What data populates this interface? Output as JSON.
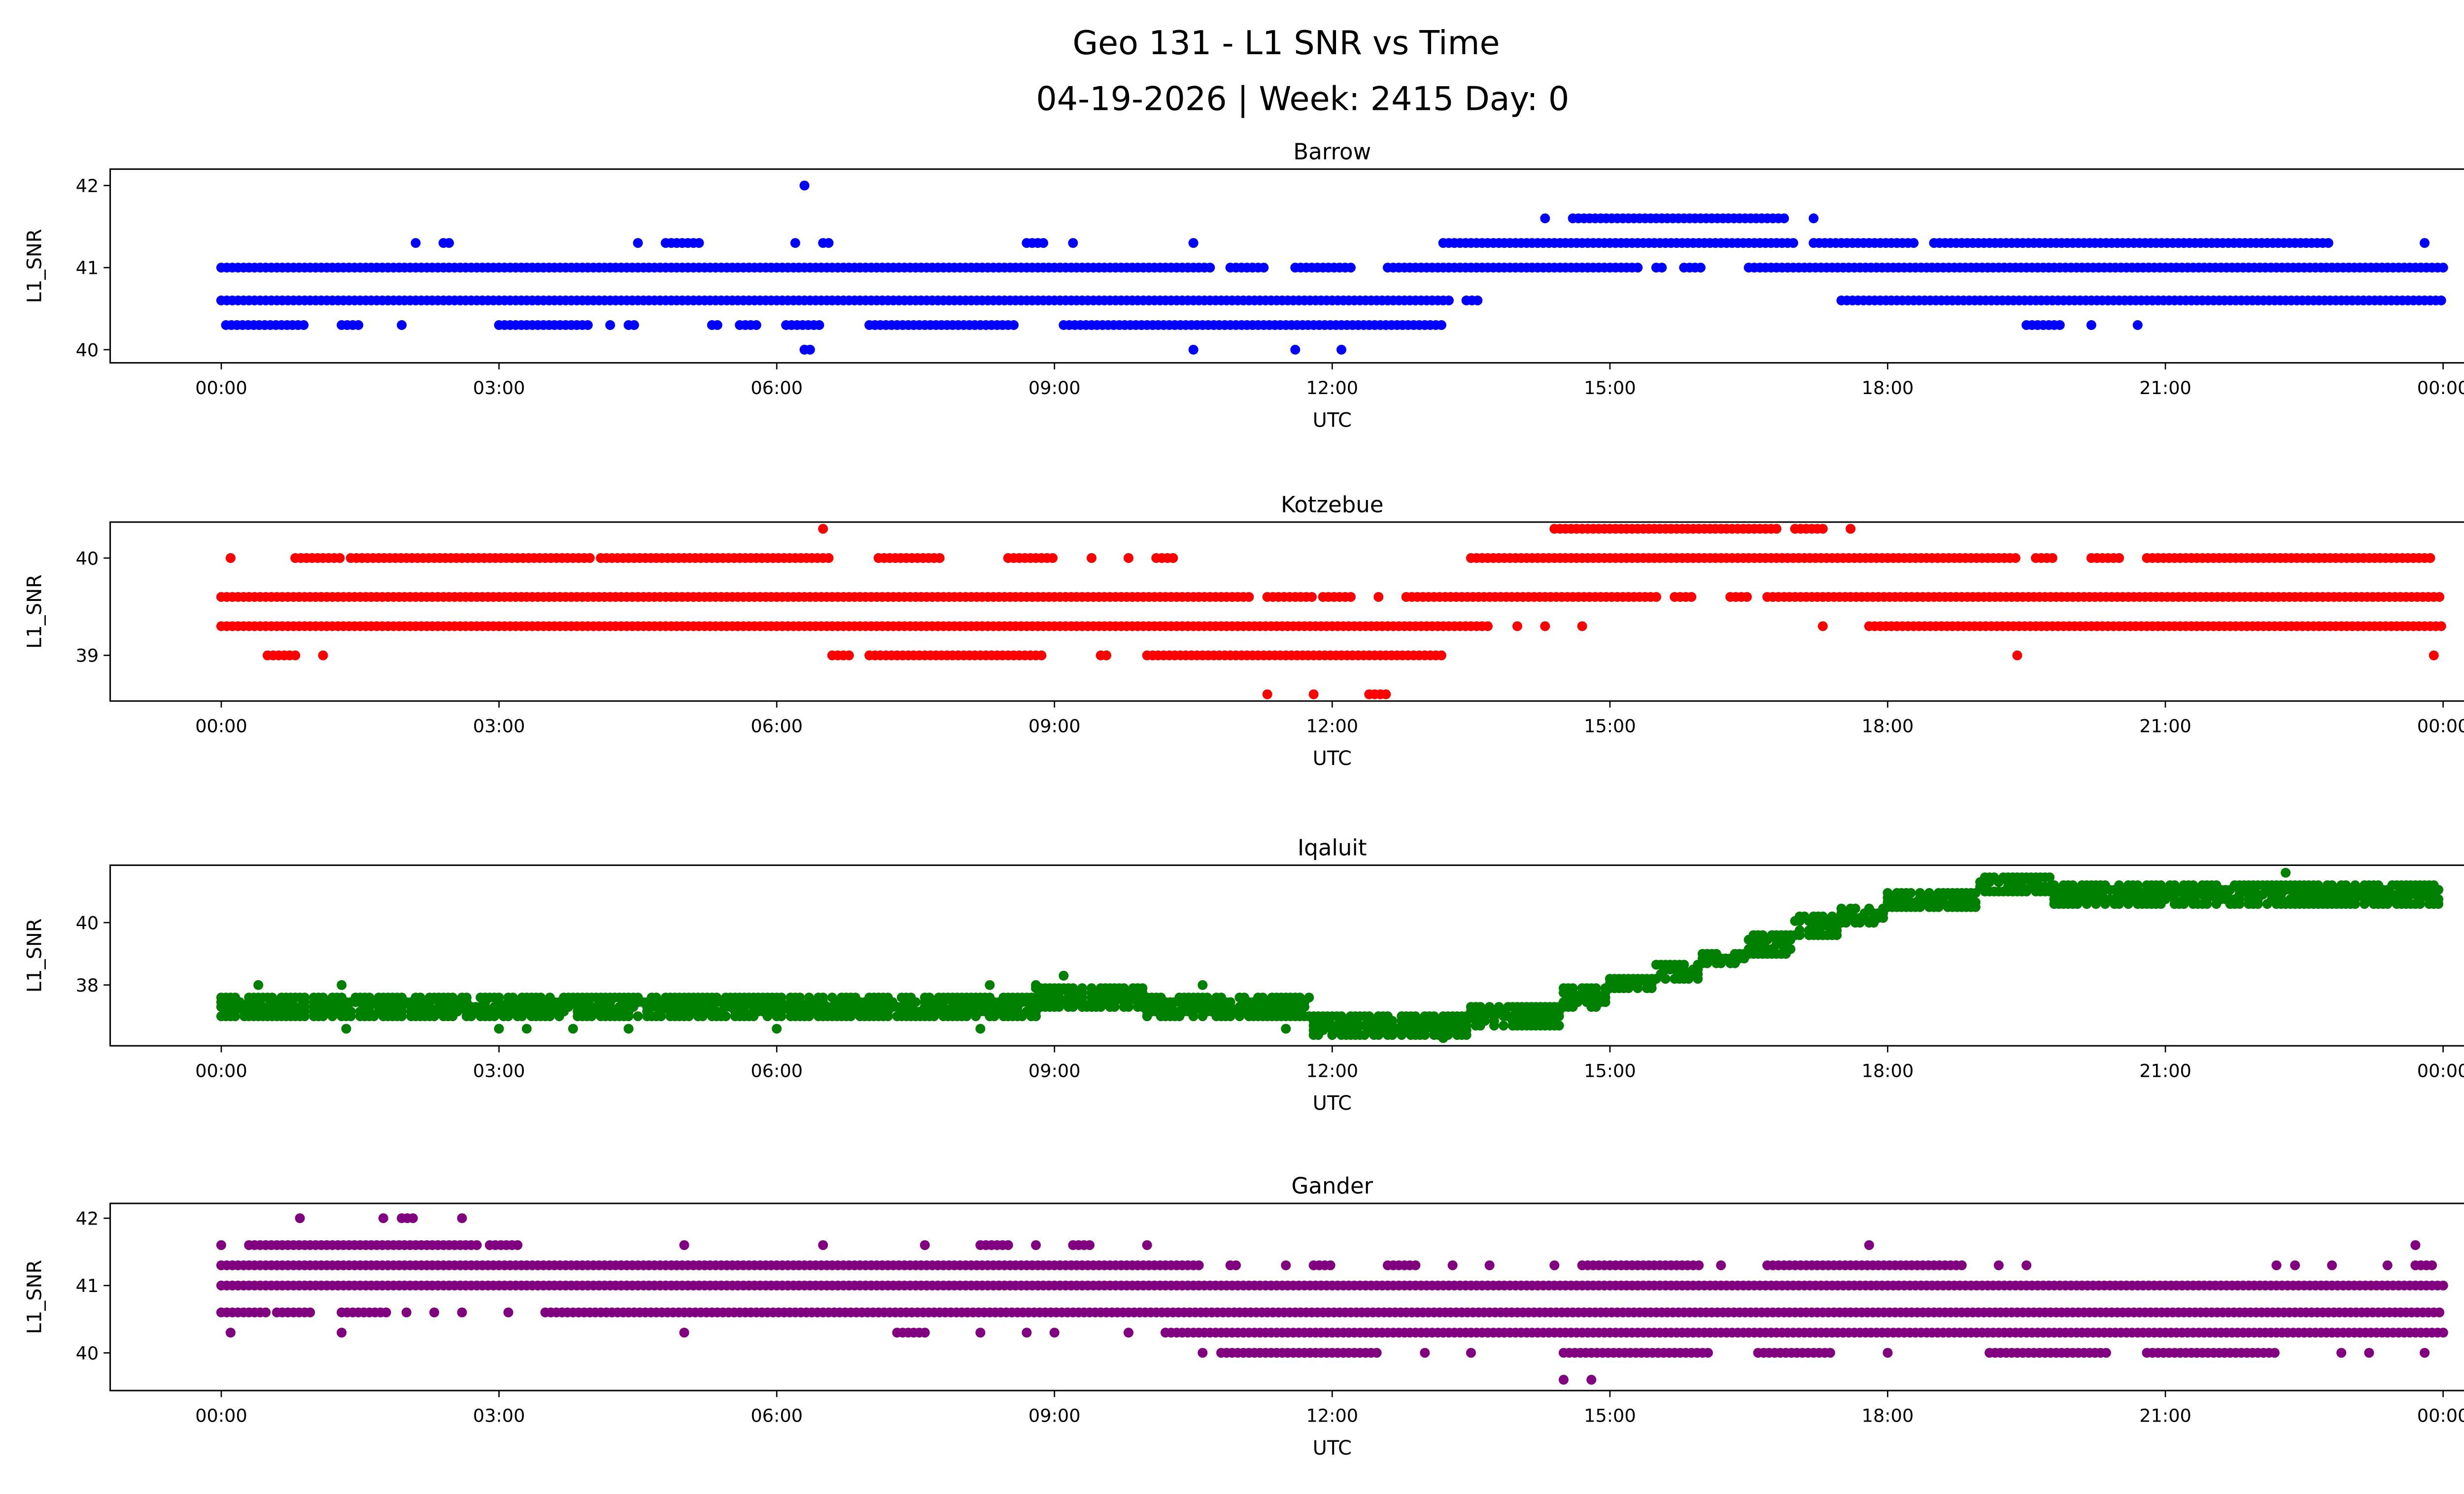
{
  "chart_data": {
    "type": "scatter",
    "title": "Geo 131 - L1 SNR vs Time",
    "subtitle": "04-19-2026 | Week: 2415 Day: 0",
    "x_tick_labels": [
      "00:00",
      "03:00",
      "06:00",
      "09:00",
      "12:00",
      "15:00",
      "18:00",
      "21:00",
      "00:00"
    ],
    "x_ticks_hours": [
      0,
      3,
      6,
      9,
      12,
      15,
      18,
      21,
      24
    ],
    "xlabel": "UTC",
    "xlim_hours": [
      -1.2,
      25.2
    ],
    "grid": false,
    "panels": [
      {
        "name": "Barrow",
        "color": "#0000ff",
        "ylabel": "L1_SNR",
        "ylim": [
          39.84,
          42.2
        ],
        "yticks": [
          40,
          41,
          42
        ],
        "ytick_labels": [
          "40",
          "41",
          "42"
        ],
        "bands": [
          {
            "y": 41.0,
            "ranges": [
              [
                0,
                10.7
              ],
              [
                10.9,
                11.3
              ],
              [
                11.6,
                12.2
              ],
              [
                12.6,
                15.3
              ],
              [
                15.5,
                15.6
              ],
              [
                15.8,
                16.0
              ],
              [
                16.5,
                24
              ]
            ]
          },
          {
            "y": 40.6,
            "ranges": [
              [
                0,
                13.3
              ],
              [
                13.45,
                13.6
              ],
              [
                17.5,
                24
              ]
            ]
          },
          {
            "y": 40.3,
            "ranges": [
              [
                0.05,
                0.9
              ],
              [
                1.3,
                1.5
              ],
              [
                1.95,
                1.95
              ],
              [
                3.0,
                4.0
              ],
              [
                4.2,
                4.2
              ],
              [
                4.4,
                4.5
              ],
              [
                5.3,
                5.4
              ],
              [
                5.6,
                5.8
              ],
              [
                6.1,
                6.5
              ],
              [
                7.0,
                8.6
              ],
              [
                9.1,
                13.2
              ],
              [
                19.5,
                19.9
              ],
              [
                20.2,
                20.2
              ],
              [
                20.7,
                20.7
              ]
            ]
          },
          {
            "y": 41.3,
            "ranges": [
              [
                2.1,
                2.1
              ],
              [
                2.4,
                2.5
              ],
              [
                4.5,
                4.5
              ],
              [
                4.8,
                5.2
              ],
              [
                6.2,
                6.2
              ],
              [
                6.5,
                6.6
              ],
              [
                8.7,
                8.9
              ],
              [
                9.2,
                9.2
              ],
              [
                10.5,
                10.5
              ],
              [
                13.2,
                17.0
              ],
              [
                17.2,
                18.3
              ],
              [
                18.5,
                22.8
              ],
              [
                23.8,
                23.8
              ]
            ]
          },
          {
            "y": 41.6,
            "ranges": [
              [
                14.3,
                14.3
              ],
              [
                14.6,
                16.9
              ],
              [
                17.2,
                17.2
              ]
            ]
          },
          {
            "y": 42.0,
            "ranges": [
              [
                6.3,
                6.3
              ]
            ]
          },
          {
            "y": 40.0,
            "ranges": [
              [
                6.3,
                6.4
              ],
              [
                10.5,
                10.5
              ],
              [
                11.6,
                11.6
              ],
              [
                12.1,
                12.1
              ]
            ]
          }
        ]
      },
      {
        "name": "Kotzebue",
        "color": "#ff0000",
        "ylabel": "L1_SNR",
        "ylim": [
          38.53,
          40.37
        ],
        "yticks": [
          39,
          40
        ],
        "ytick_labels": [
          "39",
          "40"
        ],
        "bands": [
          {
            "y": 40.3,
            "ranges": [
              [
                6.5,
                6.5
              ],
              [
                14.4,
                16.8
              ],
              [
                17.0,
                17.3
              ],
              [
                17.6,
                17.6
              ]
            ]
          },
          {
            "y": 40.0,
            "ranges": [
              [
                0.1,
                0.1
              ],
              [
                0.8,
                1.3
              ],
              [
                1.4,
                4.0
              ],
              [
                4.1,
                6.6
              ],
              [
                7.1,
                7.8
              ],
              [
                8.5,
                9.0
              ],
              [
                9.4,
                9.4
              ],
              [
                9.8,
                9.8
              ],
              [
                10.1,
                10.3
              ],
              [
                13.5,
                19.4
              ],
              [
                19.6,
                19.8
              ],
              [
                20.2,
                20.5
              ],
              [
                20.8,
                23.9
              ]
            ]
          },
          {
            "y": 39.6,
            "ranges": [
              [
                0,
                11.1
              ],
              [
                11.3,
                11.8
              ],
              [
                11.9,
                12.2
              ],
              [
                12.5,
                12.5
              ],
              [
                12.8,
                15.5
              ],
              [
                15.7,
                15.9
              ],
              [
                16.3,
                16.5
              ],
              [
                16.7,
                24
              ]
            ]
          },
          {
            "y": 39.3,
            "ranges": [
              [
                0,
                13.7
              ],
              [
                14.0,
                14.0
              ],
              [
                14.3,
                14.3
              ],
              [
                14.7,
                14.7
              ],
              [
                17.3,
                17.3
              ],
              [
                17.8,
                24
              ]
            ]
          },
          {
            "y": 39.0,
            "ranges": [
              [
                0.5,
                0.8
              ],
              [
                1.1,
                1.1
              ],
              [
                6.6,
                6.8
              ],
              [
                7.0,
                8.9
              ],
              [
                9.5,
                9.6
              ],
              [
                10.0,
                13.2
              ],
              [
                19.4,
                19.4
              ],
              [
                23.9,
                23.9
              ]
            ]
          },
          {
            "y": 38.6,
            "ranges": [
              [
                11.3,
                11.3
              ],
              [
                11.8,
                11.8
              ],
              [
                12.4,
                12.6
              ]
            ]
          }
        ]
      },
      {
        "name": "Iqaluit",
        "color": "#008000",
        "ylabel": "L1_SNR",
        "ylim": [
          36.05,
          41.84
        ],
        "yticks": [
          38,
          40
        ],
        "ytick_labels": [
          "38",
          "40"
        ],
        "blocks": [
          {
            "hours": [
              0,
              8.8
            ],
            "y_range": [
              37.0,
              37.6
            ]
          },
          {
            "hours": [
              8.8,
              10.0
            ],
            "y_range": [
              37.3,
              38.0
            ]
          },
          {
            "hours": [
              10.0,
              11.8
            ],
            "y_range": [
              37.0,
              37.6
            ]
          },
          {
            "hours": [
              11.8,
              13.5
            ],
            "y_range": [
              36.4,
              37.0
            ]
          },
          {
            "hours": [
              13.5,
              14.5
            ],
            "y_range": [
              36.7,
              37.4
            ]
          },
          {
            "hours": [
              14.5,
              15.0
            ],
            "y_range": [
              37.3,
              37.9
            ]
          },
          {
            "hours": [
              15.0,
              15.5
            ],
            "y_range": [
              37.9,
              38.3
            ]
          },
          {
            "hours": [
              15.5,
              16.0
            ],
            "y_range": [
              38.2,
              38.7
            ]
          },
          {
            "hours": [
              16.0,
              16.5
            ],
            "y_range": [
              38.7,
              39.1
            ]
          },
          {
            "hours": [
              16.5,
              17.0
            ],
            "y_range": [
              39.0,
              39.7
            ]
          },
          {
            "hours": [
              17.0,
              17.5
            ],
            "y_range": [
              39.6,
              40.2
            ]
          },
          {
            "hours": [
              17.5,
              18.0
            ],
            "y_range": [
              40.0,
              40.5
            ]
          },
          {
            "hours": [
              18.0,
              19.0
            ],
            "y_range": [
              40.5,
              41.0
            ]
          },
          {
            "hours": [
              19.0,
              19.8
            ],
            "y_range": [
              41.0,
              41.5
            ]
          },
          {
            "hours": [
              19.8,
              24.0
            ],
            "y_range": [
              40.6,
              41.3
            ]
          }
        ],
        "outliers": [
          [
            0.4,
            38.0
          ],
          [
            1.3,
            38.0
          ],
          [
            1.35,
            36.6
          ],
          [
            3.0,
            36.6
          ],
          [
            3.3,
            36.6
          ],
          [
            3.8,
            36.6
          ],
          [
            4.4,
            36.6
          ],
          [
            6.0,
            36.6
          ],
          [
            8.2,
            36.6
          ],
          [
            8.3,
            38.0
          ],
          [
            8.8,
            38.0
          ],
          [
            9.1,
            38.3
          ],
          [
            10.6,
            38.0
          ],
          [
            11.5,
            36.6
          ],
          [
            13.2,
            36.3
          ],
          [
            22.3,
            41.6
          ]
        ]
      },
      {
        "name": "Gander",
        "color": "#800080",
        "ylabel": "L1_SNR",
        "ylim": [
          39.44,
          42.22
        ],
        "yticks": [
          40,
          41,
          42
        ],
        "ytick_labels": [
          "40",
          "41",
          "42"
        ],
        "bands": [
          {
            "y": 42.0,
            "ranges": [
              [
                0.85,
                0.85
              ],
              [
                1.75,
                1.75
              ],
              [
                1.95,
                2.1
              ],
              [
                2.6,
                2.6
              ]
            ]
          },
          {
            "y": 41.6,
            "ranges": [
              [
                0,
                0
              ],
              [
                0.3,
                2.8
              ],
              [
                2.9,
                3.2
              ],
              [
                5.0,
                5.0
              ],
              [
                6.5,
                6.5
              ],
              [
                7.6,
                7.6
              ],
              [
                8.2,
                8.5
              ],
              [
                8.8,
                8.8
              ],
              [
                9.2,
                9.4
              ],
              [
                10.0,
                10.0
              ],
              [
                17.8,
                17.8
              ],
              [
                23.7,
                23.7
              ]
            ]
          },
          {
            "y": 41.3,
            "ranges": [
              [
                0,
                10.6
              ],
              [
                10.9,
                11.0
              ],
              [
                11.5,
                11.5
              ],
              [
                11.8,
                12.0
              ],
              [
                12.6,
                12.9
              ],
              [
                13.3,
                13.3
              ],
              [
                13.7,
                13.7
              ],
              [
                14.4,
                14.4
              ],
              [
                14.7,
                16.0
              ],
              [
                16.2,
                16.2
              ],
              [
                16.7,
                18.8
              ],
              [
                19.2,
                19.2
              ],
              [
                19.5,
                19.5
              ],
              [
                22.2,
                22.2
              ],
              [
                22.4,
                22.4
              ],
              [
                22.8,
                22.8
              ],
              [
                23.4,
                23.4
              ],
              [
                23.7,
                23.9
              ]
            ]
          },
          {
            "y": 41.0,
            "ranges": [
              [
                0,
                24
              ]
            ]
          },
          {
            "y": 40.6,
            "ranges": [
              [
                0,
                0.5
              ],
              [
                0.6,
                1.0
              ],
              [
                1.3,
                1.8
              ],
              [
                2.0,
                2.0
              ],
              [
                2.3,
                2.3
              ],
              [
                2.6,
                2.6
              ],
              [
                3.1,
                3.1
              ],
              [
                3.5,
                24
              ]
            ]
          },
          {
            "y": 40.3,
            "ranges": [
              [
                0.1,
                0.1
              ],
              [
                1.3,
                1.3
              ],
              [
                5.0,
                5.0
              ],
              [
                7.3,
                7.6
              ],
              [
                8.2,
                8.2
              ],
              [
                8.7,
                8.7
              ],
              [
                9.0,
                9.0
              ],
              [
                9.8,
                9.8
              ],
              [
                10.2,
                24
              ]
            ]
          },
          {
            "y": 40.0,
            "ranges": [
              [
                10.6,
                10.6
              ],
              [
                10.8,
                12.5
              ],
              [
                13.0,
                13.0
              ],
              [
                13.5,
                13.5
              ],
              [
                14.5,
                16.1
              ],
              [
                16.6,
                17.4
              ],
              [
                18.0,
                18.0
              ],
              [
                19.1,
                20.4
              ],
              [
                20.8,
                22.2
              ],
              [
                22.9,
                22.9
              ],
              [
                23.2,
                23.2
              ],
              [
                23.8,
                23.8
              ]
            ]
          },
          {
            "y": 39.6,
            "ranges": [
              [
                14.5,
                14.5
              ],
              [
                14.8,
                14.8
              ]
            ]
          }
        ]
      }
    ]
  }
}
